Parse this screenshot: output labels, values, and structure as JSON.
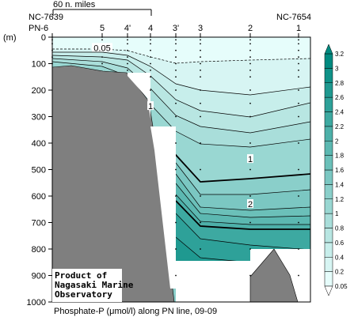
{
  "header": {
    "scale_label": "60 n. miles",
    "left_station": "NC-7639",
    "right_station": "NC-7654",
    "y_unit": "(m)"
  },
  "chart_data": {
    "type": "heatmap",
    "title": "Phosphate-P (μmol/l) along PN line, 09-09",
    "x_categories": [
      "PN-6",
      "5",
      "4'",
      "4",
      "3'",
      "3",
      "2",
      "1"
    ],
    "ylim": [
      0,
      1000
    ],
    "y_ticks": [
      0,
      100,
      200,
      300,
      400,
      500,
      600,
      700,
      800,
      900,
      1000
    ],
    "y_tick_labels": [
      "0",
      "100",
      "200",
      "300",
      "400",
      "500",
      "600",
      "700",
      "800",
      "900",
      "1000"
    ],
    "colorbar": {
      "levels": [
        0.05,
        0.2,
        0.4,
        0.6,
        0.8,
        1.0,
        1.2,
        1.4,
        1.6,
        1.8,
        2.0,
        2.2,
        2.4,
        2.6,
        2.8,
        3.0,
        3.2
      ],
      "labels": [
        "0.05",
        "0.2",
        "0.4",
        "0.6",
        "0.8",
        "1",
        "1.2",
        "1.4",
        "1.6",
        "1.8",
        "2",
        "2.2",
        "2.4",
        "2.6",
        "2.8",
        "3",
        "3.2"
      ],
      "color_low": "#e6fdfb",
      "color_high": "#008a80"
    },
    "contour_labels": [
      {
        "text": "0.05",
        "station": "5",
        "depth": 40
      },
      {
        "text": "1",
        "station": "4",
        "depth": 260
      },
      {
        "text": "1",
        "station": "2",
        "depth": 460
      },
      {
        "text": "2",
        "station": "2",
        "depth": 630
      }
    ],
    "stations": [
      {
        "name": "PN-6",
        "depths": [
          0,
          10,
          25,
          50,
          75,
          100
        ]
      },
      {
        "name": "5",
        "depths": [
          0,
          10,
          25,
          50,
          75,
          100
        ]
      },
      {
        "name": "4'",
        "depths": [
          0,
          10,
          25,
          50,
          75,
          100,
          125
        ]
      },
      {
        "name": "4",
        "depths": [
          0,
          10,
          25,
          50,
          75,
          100,
          125,
          150,
          200,
          250
        ]
      },
      {
        "name": "3'",
        "depths": [
          0,
          10,
          25,
          50,
          75,
          100,
          125,
          150,
          200,
          250,
          300,
          400,
          500,
          600,
          700,
          800,
          900
        ]
      },
      {
        "name": "3",
        "depths": [
          0,
          10,
          25,
          50,
          75,
          100,
          125,
          150,
          200,
          250,
          300,
          400,
          500,
          600,
          700,
          800
        ]
      },
      {
        "name": "2",
        "depths": [
          0,
          10,
          25,
          50,
          75,
          100,
          125,
          150,
          200,
          250,
          300,
          400,
          500,
          600,
          700,
          800,
          900
        ]
      },
      {
        "name": "1",
        "depths": [
          0,
          10,
          25,
          50,
          75,
          100,
          125,
          150,
          200,
          250,
          300,
          400,
          500,
          600,
          700,
          800,
          900
        ]
      }
    ]
  },
  "credit": {
    "line1": "Product of",
    "line2": "Nagasaki Marine",
    "line3": "Observatory"
  }
}
